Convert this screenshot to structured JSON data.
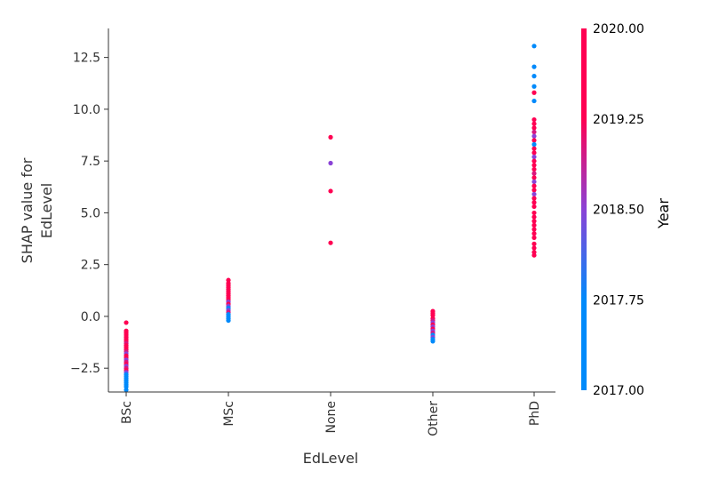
{
  "chart_data": {
    "type": "scatter",
    "xlabel": "EdLevel",
    "ylabel_lines": [
      "SHAP value for",
      "EdLevel"
    ],
    "categories": [
      "BSc",
      "MSc",
      "None",
      "Other",
      "PhD"
    ],
    "y_ticks": [
      "−2.5",
      "0.0",
      "2.5",
      "5.0",
      "7.5",
      "10.0",
      "12.5"
    ],
    "y_tick_values": [
      -2.5,
      0.0,
      2.5,
      5.0,
      7.5,
      10.0,
      12.5
    ],
    "ylim": [
      -3.65,
      13.9
    ],
    "grid": false,
    "colorbar": {
      "title": "Year",
      "range": [
        2017.0,
        2020.0
      ],
      "ticks": [
        "2020.00",
        "2019.25",
        "2018.50",
        "2017.75",
        "2017.00"
      ],
      "tick_values": [
        2020.0,
        2019.25,
        2018.5,
        2017.75,
        2017.0
      ],
      "colors": {
        "low": "#008afb",
        "mid": "#8a42d6",
        "high": "#ff0052"
      }
    },
    "series": [
      {
        "category": "BSc",
        "points": [
          [
            -0.3,
            2020
          ],
          [
            -0.7,
            2019.5
          ],
          [
            -0.8,
            2020
          ],
          [
            -0.9,
            2019.5
          ],
          [
            -1.0,
            2020
          ],
          [
            -1.1,
            2019.5
          ],
          [
            -1.2,
            2020
          ],
          [
            -1.3,
            2019
          ],
          [
            -1.4,
            2020
          ],
          [
            -1.5,
            2019.5
          ],
          [
            -1.6,
            2020
          ],
          [
            -1.7,
            2019
          ],
          [
            -1.8,
            2018.5
          ],
          [
            -1.9,
            2019.5
          ],
          [
            -2.0,
            2020
          ],
          [
            -2.1,
            2018.5
          ],
          [
            -2.2,
            2019
          ],
          [
            -2.3,
            2019.5
          ],
          [
            -2.4,
            2018.5
          ],
          [
            -2.5,
            2019
          ],
          [
            -2.6,
            2020
          ],
          [
            -2.7,
            2018.5
          ],
          [
            -2.8,
            2017.5
          ],
          [
            -2.9,
            2017.2
          ],
          [
            -3.0,
            2017.0
          ],
          [
            -3.1,
            2017.5
          ],
          [
            -3.2,
            2017.0
          ],
          [
            -3.3,
            2017.2
          ],
          [
            -3.4,
            2017.0
          ],
          [
            -3.55,
            2017.0
          ]
        ]
      },
      {
        "category": "MSc",
        "points": [
          [
            1.75,
            2019.5
          ],
          [
            1.6,
            2020
          ],
          [
            1.5,
            2019.5
          ],
          [
            1.4,
            2019.5
          ],
          [
            1.3,
            2020
          ],
          [
            1.2,
            2019.5
          ],
          [
            1.1,
            2019.5
          ],
          [
            1.0,
            2020
          ],
          [
            0.9,
            2019.5
          ],
          [
            0.8,
            2019.5
          ],
          [
            0.7,
            2018.5
          ],
          [
            0.6,
            2019.5
          ],
          [
            0.5,
            2018.5
          ],
          [
            0.4,
            2017.5
          ],
          [
            0.3,
            2018.5
          ],
          [
            0.2,
            2019
          ],
          [
            0.1,
            2017.5
          ],
          [
            0.0,
            2017.2
          ],
          [
            -0.1,
            2017.0
          ],
          [
            -0.2,
            2017.0
          ]
        ]
      },
      {
        "category": "None",
        "points": [
          [
            8.65,
            2019.6
          ],
          [
            7.4,
            2018.5
          ],
          [
            6.05,
            2019.6
          ],
          [
            3.55,
            2019.6
          ]
        ]
      },
      {
        "category": "Other",
        "points": [
          [
            0.25,
            2019.5
          ],
          [
            0.15,
            2020
          ],
          [
            0.05,
            2019.5
          ],
          [
            -0.1,
            2020
          ],
          [
            -0.2,
            2019
          ],
          [
            -0.3,
            2018.5
          ],
          [
            -0.4,
            2019.5
          ],
          [
            -0.5,
            2018.5
          ],
          [
            -0.6,
            2019.5
          ],
          [
            -0.7,
            2018.5
          ],
          [
            -0.8,
            2019
          ],
          [
            -0.9,
            2017.5
          ],
          [
            -1.0,
            2018.5
          ],
          [
            -1.1,
            2017.2
          ],
          [
            -1.2,
            2017.0
          ]
        ]
      },
      {
        "category": "PhD",
        "points": [
          [
            13.05,
            2017.0
          ],
          [
            12.05,
            2017.0
          ],
          [
            11.6,
            2017.0
          ],
          [
            11.1,
            2017.5
          ],
          [
            10.8,
            2019.5
          ],
          [
            10.4,
            2017.5
          ],
          [
            9.5,
            2019.5
          ],
          [
            9.3,
            2019.5
          ],
          [
            9.1,
            2019.5
          ],
          [
            8.9,
            2019
          ],
          [
            8.7,
            2018.5
          ],
          [
            8.5,
            2019.5
          ],
          [
            8.3,
            2017.5
          ],
          [
            8.1,
            2019.5
          ],
          [
            7.9,
            2020
          ],
          [
            7.7,
            2018.5
          ],
          [
            7.5,
            2019.5
          ],
          [
            7.3,
            2020
          ],
          [
            7.1,
            2019.5
          ],
          [
            6.9,
            2019
          ],
          [
            6.7,
            2020
          ],
          [
            6.5,
            2018.5
          ],
          [
            6.3,
            2019.5
          ],
          [
            6.1,
            2019.5
          ],
          [
            5.9,
            2018.5
          ],
          [
            5.7,
            2019.5
          ],
          [
            5.5,
            2020
          ],
          [
            5.3,
            2019.5
          ],
          [
            5.0,
            2019.5
          ],
          [
            4.8,
            2020
          ],
          [
            4.6,
            2019.5
          ],
          [
            4.4,
            2019.5
          ],
          [
            4.2,
            2019.5
          ],
          [
            4.0,
            2020
          ],
          [
            3.8,
            2019.5
          ],
          [
            3.5,
            2020
          ],
          [
            3.3,
            2019.5
          ],
          [
            3.1,
            2020
          ],
          [
            2.95,
            2019.5
          ]
        ]
      }
    ]
  }
}
